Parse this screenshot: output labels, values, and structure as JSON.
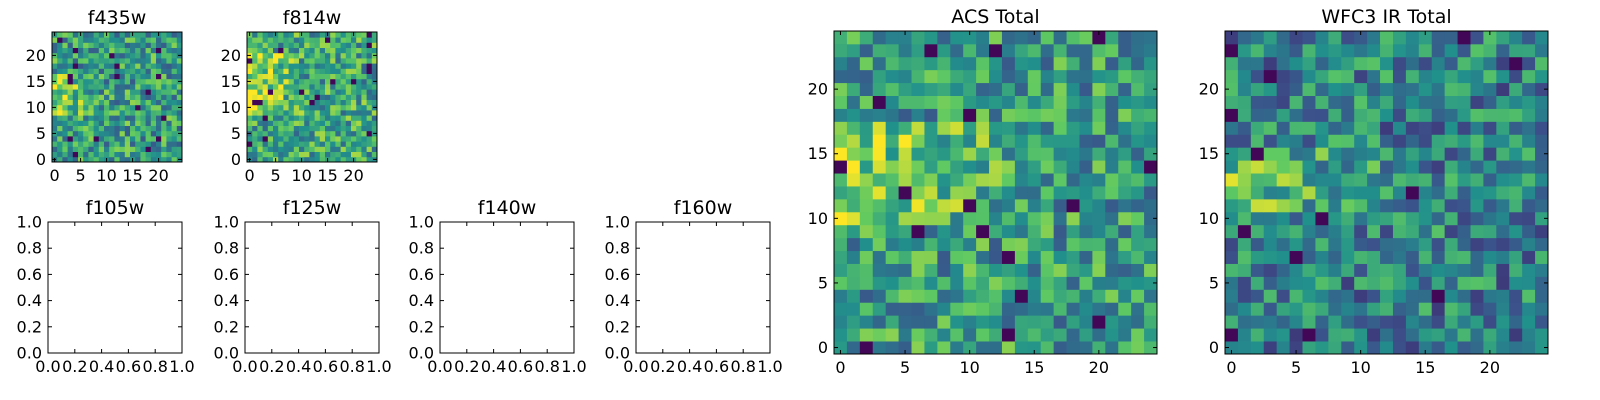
{
  "colormap": {
    "name": "viridis",
    "stops": [
      "#440154",
      "#3b528b",
      "#21918c",
      "#5ec962",
      "#fde725"
    ]
  },
  "chart_data": [
    {
      "id": "f435w",
      "type": "heatmap",
      "title": "f435w",
      "grid_size": [
        25,
        25
      ],
      "xlim": [
        -0.5,
        24.5
      ],
      "ylim": [
        -0.5,
        24.5
      ],
      "xticks": [
        0,
        5,
        10,
        15,
        20
      ],
      "yticks": [
        0,
        5,
        10,
        15,
        20
      ],
      "bright_region": {
        "y": [
          9,
          16
        ],
        "x": [
          0,
          8
        ]
      },
      "mean_level": 0.56
    },
    {
      "id": "f814w",
      "type": "heatmap",
      "title": "f814w",
      "grid_size": [
        25,
        25
      ],
      "xlim": [
        -0.5,
        24.5
      ],
      "ylim": [
        -0.5,
        24.5
      ],
      "xticks": [
        0,
        5,
        10,
        15,
        20
      ],
      "yticks": [
        0,
        5,
        10,
        15,
        20
      ],
      "bright_region": {
        "y": [
          9,
          20
        ],
        "x": [
          0,
          10
        ]
      },
      "mean_level": 0.6
    },
    {
      "id": "f105w",
      "type": "empty",
      "title": "f105w",
      "xlim": [
        0,
        1
      ],
      "ylim": [
        0,
        1
      ],
      "xticks": [
        "0.0",
        "0.2",
        "0.4",
        "0.6",
        "0.8",
        "1.0"
      ],
      "yticks": [
        "0.0",
        "0.2",
        "0.4",
        "0.6",
        "0.8",
        "1.0"
      ]
    },
    {
      "id": "f125w",
      "type": "empty",
      "title": "f125w",
      "xlim": [
        0,
        1
      ],
      "ylim": [
        0,
        1
      ],
      "xticks": [
        "0.0",
        "0.2",
        "0.4",
        "0.6",
        "0.8",
        "1.0"
      ],
      "yticks": [
        "0.0",
        "0.2",
        "0.4",
        "0.6",
        "0.8",
        "1.0"
      ]
    },
    {
      "id": "f140w",
      "type": "empty",
      "title": "f140w",
      "xlim": [
        0,
        1
      ],
      "ylim": [
        0,
        1
      ],
      "xticks": [
        "0.0",
        "0.2",
        "0.4",
        "0.6",
        "0.8",
        "1.0"
      ],
      "yticks": [
        "0.0",
        "0.2",
        "0.4",
        "0.6",
        "0.8",
        "1.0"
      ]
    },
    {
      "id": "f160w",
      "type": "empty",
      "title": "f160w",
      "xlim": [
        0,
        1
      ],
      "ylim": [
        0,
        1
      ],
      "xticks": [
        "0.0",
        "0.2",
        "0.4",
        "0.6",
        "0.8",
        "1.0"
      ],
      "yticks": [
        "0.0",
        "0.2",
        "0.4",
        "0.6",
        "0.8",
        "1.0"
      ]
    },
    {
      "id": "acs_total",
      "type": "heatmap",
      "title": "ACS Total",
      "grid_size": [
        25,
        25
      ],
      "xlim": [
        -0.5,
        24.5
      ],
      "ylim": [
        -0.5,
        24.5
      ],
      "xticks": [
        0,
        5,
        10,
        15,
        20
      ],
      "yticks": [
        0,
        5,
        10,
        15,
        20
      ],
      "bright_region": {
        "y": [
          10,
          17
        ],
        "x": [
          0,
          16
        ]
      },
      "mean_level": 0.55
    },
    {
      "id": "wfc3_ir_total",
      "type": "heatmap",
      "title": "WFC3 IR Total",
      "grid_size": [
        25,
        25
      ],
      "xlim": [
        -0.5,
        24.5
      ],
      "ylim": [
        -0.5,
        24.5
      ],
      "xticks": [
        0,
        5,
        10,
        15,
        20
      ],
      "yticks": [
        0,
        5,
        10,
        15,
        20
      ],
      "bright_region": {
        "y": [
          11,
          15
        ],
        "x": [
          0,
          14
        ]
      },
      "mean_level": 0.45
    }
  ]
}
